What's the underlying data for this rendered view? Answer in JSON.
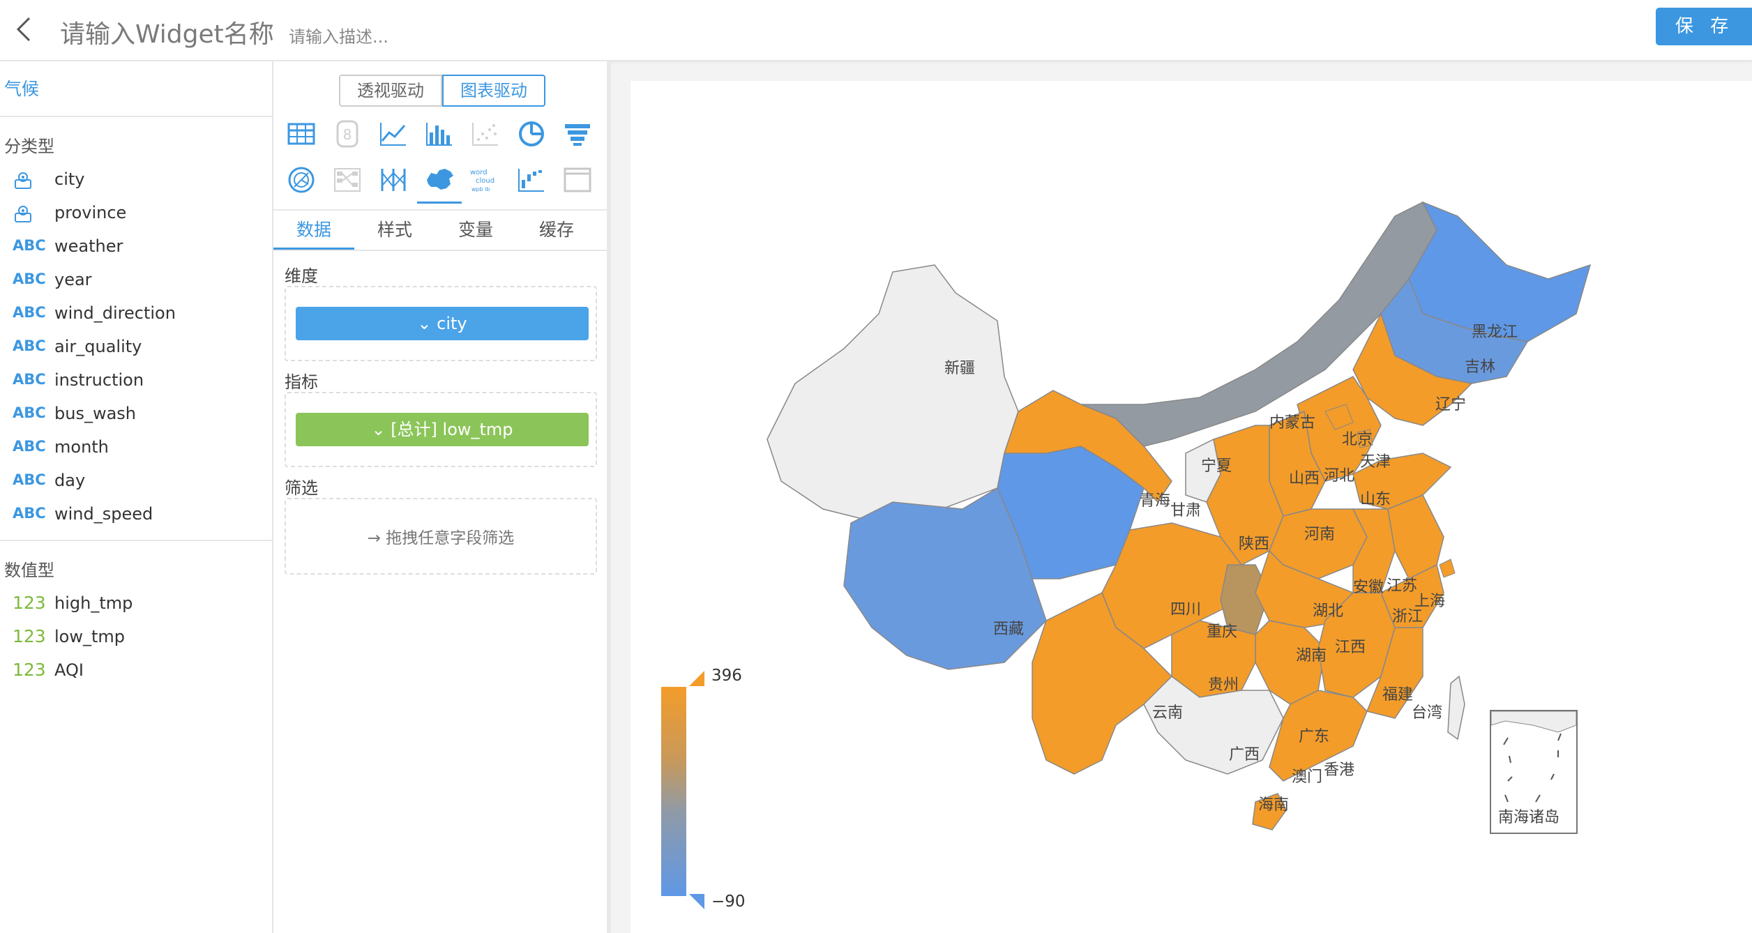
{
  "header": {
    "widget_name": "请输入Widget名称",
    "description_placeholder": "请输入描述...",
    "save_label": "保 存"
  },
  "fields_panel": {
    "source_name": "气候",
    "categorical_title": "分类型",
    "categorical_fields": [
      {
        "name": "city",
        "type_icon": "geo-pin-icon"
      },
      {
        "name": "province",
        "type_icon": "geo-pin-icon"
      },
      {
        "name": "weather",
        "type_label": "ABC"
      },
      {
        "name": "year",
        "type_label": "ABC"
      },
      {
        "name": "wind_direction",
        "type_label": "ABC"
      },
      {
        "name": "air_quality",
        "type_label": "ABC"
      },
      {
        "name": "instruction",
        "type_label": "ABC"
      },
      {
        "name": "bus_wash",
        "type_label": "ABC"
      },
      {
        "name": "month",
        "type_label": "ABC"
      },
      {
        "name": "day",
        "type_label": "ABC"
      },
      {
        "name": "wind_speed",
        "type_label": "ABC"
      }
    ],
    "numeric_title": "数值型",
    "numeric_fields": [
      {
        "name": "high_tmp",
        "type_label": "123"
      },
      {
        "name": "low_tmp",
        "type_label": "123"
      },
      {
        "name": "AQI",
        "type_label": "123"
      }
    ]
  },
  "config_panel": {
    "mode_toggle": [
      "透视驱动",
      "图表驱动"
    ],
    "mode_selected": "图表驱动",
    "chart_types": [
      "table-icon",
      "number-icon",
      "line-chart-icon",
      "bar-chart-icon",
      "scatter-icon",
      "pie-chart-icon",
      "funnel-icon",
      "radar-icon",
      "sankey-icon",
      "parallel-icon",
      "china-map-icon",
      "wordcloud-icon",
      "waterfall-icon",
      "web-icon"
    ],
    "chart_selected": "china-map-icon",
    "tabs": [
      "数据",
      "样式",
      "变量",
      "缓存"
    ],
    "tab_active": "数据",
    "dimension_label": "维度",
    "dimension_value": "city",
    "metric_label": "指标",
    "metric_value": "[总计] low_tmp",
    "filter_label": "筛选",
    "filter_hint": "拖拽任意字段筛选"
  },
  "map_view": {
    "legend_max": "396",
    "legend_min": "−90",
    "colors": {
      "high": "#f39c2a",
      "mid": "#939aa2",
      "low": "#5f98e6",
      "none": "#eeeeee"
    },
    "regions": [
      "新疆",
      "西藏",
      "青海",
      "甘肃",
      "内蒙古",
      "黑龙江",
      "吉林",
      "辽宁",
      "北京",
      "天津",
      "河北",
      "山西",
      "山东",
      "宁夏",
      "陕西",
      "河南",
      "四川",
      "重庆",
      "湖北",
      "安徽",
      "江苏",
      "上海",
      "浙江",
      "湖南",
      "江西",
      "贵州",
      "云南",
      "广西",
      "广东",
      "福建",
      "台湾",
      "香港",
      "澳门",
      "海南"
    ],
    "inset_label": "南海诸岛"
  }
}
